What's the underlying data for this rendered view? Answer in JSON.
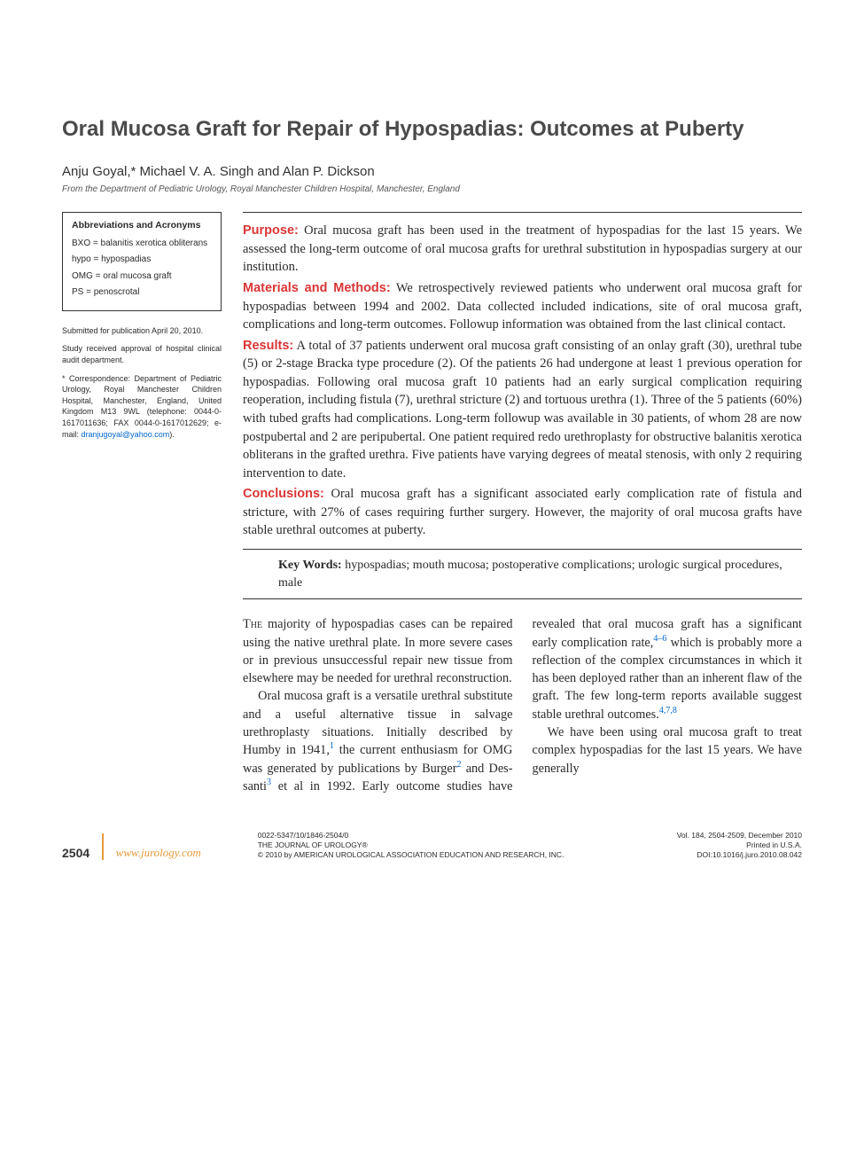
{
  "title": "Oral Mucosa Graft for Repair of Hypospadias: Outcomes at Puberty",
  "authors": "Anju Goyal,* Michael V. A. Singh and Alan P. Dickson",
  "affiliation": "From the Department of Pediatric Urology, Royal Manchester Children Hospital, Manchester, England",
  "abbrev": {
    "title": "Abbreviations and Acronyms",
    "items": [
      "BXO = balanitis xerotica obliterans",
      "hypo = hypospadias",
      "OMG = oral mucosa graft",
      "PS = penoscrotal"
    ]
  },
  "sidebar_notes": {
    "n1": "Submitted for publication April 20, 2010.",
    "n2": "Study received approval of hospital clinical audit department.",
    "n3_pre": "* Correspondence: Department of Pediatric Urology, Royal Manchester Children Hospital, Manchester, England, United Kingdom M13 9WL (telephone: 0044-0-1617011636; FAX 0044-0-1617012629; e-mail: ",
    "n3_email": "dranjugoyal@yahoo.com",
    "n3_post": ")."
  },
  "abstract": {
    "purpose": {
      "label": "Purpose:",
      "text": " Oral mucosa graft has been used in the treatment of hypospadias for the last 15 years. We assessed the long-term outcome of oral mucosa grafts for urethral substitution in hypospadias surgery at our institution."
    },
    "methods": {
      "label": "Materials and Methods:",
      "text": " We retrospectively reviewed patients who underwent oral mucosa graft for hypospadias between 1994 and 2002. Data collected included indications, site of oral mucosa graft, complications and long-term outcomes. Followup information was obtained from the last clinical contact."
    },
    "results": {
      "label": "Results:",
      "text": " A total of 37 patients underwent oral mucosa graft consisting of an onlay graft (30), urethral tube (5) or 2-stage Bracka type procedure (2). Of the patients 26 had undergone at least 1 previous operation for hypospadias. Following oral mucosa graft 10 patients had an early surgical complication requiring reoperation, including fistula (7), urethral stricture (2) and tortuous urethra (1). Three of the 5 patients (60%) with tubed grafts had complications. Long-term followup was available in 30 patients, of whom 28 are now postpubertal and 2 are peripubertal. One patient required redo urethroplasty for obstructive balanitis xerotica obliterans in the grafted urethra. Five patients have varying degrees of meatal stenosis, with only 2 requiring intervention to date."
    },
    "conclusions": {
      "label": "Conclusions:",
      "text": " Oral mucosa graft has a significant associated early complication rate of fistula and stricture, with 27% of cases requiring further surgery. However, the majority of oral mucosa grafts have stable urethral outcomes at puberty."
    }
  },
  "keywords": {
    "label": "Key Words:",
    "text": " hypospadias; mouth mucosa; postoperative complications; urologic surgical procedures, male"
  },
  "body": {
    "p1a": "The",
    "p1b": " majority of hypospadias cases can be repaired using the native urethral plate. In more severe cases or in previous unsuccessful repair new tissue from elsewhere may be needed for urethral reconstruction.",
    "p2a": "Oral mucosa graft is a versatile urethral substitute and a useful alternative tissue in salvage urethroplasty situations. Initially described by Humby in 1941,",
    "p2b": " the current enthusiasm for OMG was generated by publications by Burger",
    "p2c": " and Des-",
    "p2d": "santi",
    "p2e": " et al in 1992. Early outcome studies have revealed that oral mucosa graft has a significant early complication rate,",
    "p2f": " which is probably more a reflection of the complex circumstances in which it has been deployed rather than an inherent flaw of the graft. The few long-term reports available suggest stable urethral outcomes.",
    "p3": "We have been using oral mucosa graft to treat complex hypospadias for the last 15 years. We have generally",
    "r1": "1",
    "r2": "2",
    "r3": "3",
    "r46": "4–6",
    "r478": "4,7,8"
  },
  "footer": {
    "page": "2504",
    "url": "www.jurology.com",
    "issn": "0022-5347/10/1846-2504/0",
    "journal": "THE JOURNAL OF UROLOGY®",
    "copyright": "© 2010 by AMERICAN UROLOGICAL ASSOCIATION EDUCATION AND RESEARCH, INC.",
    "vol": "Vol. 184, 2504-2509, December 2010",
    "printed": "Printed in U.S.A.",
    "doi": "DOI:10.1016/j.juro.2010.08.042"
  },
  "colors": {
    "label_red": "#d93636",
    "footer_orange": "#e59a3b",
    "link_blue": "#0066cc",
    "text": "#2a2a2a",
    "bg": "#ffffff"
  }
}
